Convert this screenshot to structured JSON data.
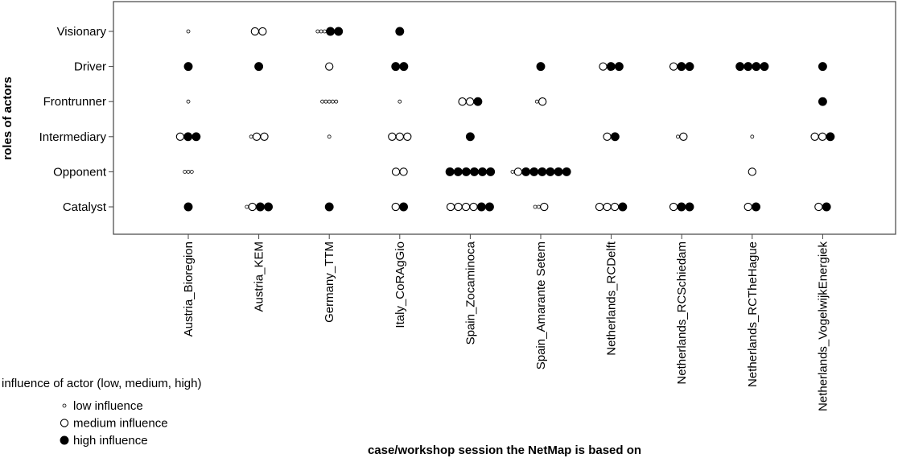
{
  "chart_data": {
    "type": "scatter",
    "xlabel": "case/workshop session the NetMap is based on",
    "ylabel": "roles of actors",
    "categories": [
      "Austria_Bioregion",
      "Austria_KEM",
      "Germany_TTM",
      "Italy_CoRAgGio",
      "Spain_Zocaminoca",
      "Spain_Amarante Setem",
      "Netherlands_RCDelft",
      "Netherlands_RCSchiedam",
      "Netherlands_RCTheHague",
      "Netherlands_VogelwijkEnergiek"
    ],
    "roles": [
      "Visionary",
      "Driver",
      "Frontrunner",
      "Intermediary",
      "Opponent",
      "Catalyst"
    ],
    "legend": {
      "title": "influence of actor (low, medium, high)",
      "entries": [
        {
          "key": "low",
          "label": "low influence"
        },
        {
          "key": "medium",
          "label": "medium influence"
        },
        {
          "key": "high",
          "label": "high influence"
        }
      ],
      "placement": "bottom-left"
    },
    "grid": false,
    "points": [
      {
        "case": "Austria_Bioregion",
        "role": "Visionary",
        "influence": [
          "low"
        ]
      },
      {
        "case": "Austria_Bioregion",
        "role": "Driver",
        "influence": [
          "high"
        ]
      },
      {
        "case": "Austria_Bioregion",
        "role": "Frontrunner",
        "influence": [
          "low"
        ]
      },
      {
        "case": "Austria_Bioregion",
        "role": "Intermediary",
        "influence": [
          "medium",
          "high",
          "high"
        ]
      },
      {
        "case": "Austria_Bioregion",
        "role": "Opponent",
        "influence": [
          "low",
          "low",
          "low"
        ]
      },
      {
        "case": "Austria_Bioregion",
        "role": "Catalyst",
        "influence": [
          "high"
        ]
      },
      {
        "case": "Austria_KEM",
        "role": "Visionary",
        "influence": [
          "medium",
          "medium"
        ]
      },
      {
        "case": "Austria_KEM",
        "role": "Driver",
        "influence": [
          "high"
        ]
      },
      {
        "case": "Austria_KEM",
        "role": "Intermediary",
        "influence": [
          "low",
          "medium",
          "medium"
        ]
      },
      {
        "case": "Austria_KEM",
        "role": "Catalyst",
        "influence": [
          "low",
          "medium",
          "high",
          "high"
        ]
      },
      {
        "case": "Germany_TTM",
        "role": "Visionary",
        "influence": [
          "low",
          "low",
          "low",
          "high",
          "high"
        ]
      },
      {
        "case": "Germany_TTM",
        "role": "Driver",
        "influence": [
          "medium"
        ]
      },
      {
        "case": "Germany_TTM",
        "role": "Frontrunner",
        "influence": [
          "low",
          "low",
          "low",
          "low",
          "low"
        ]
      },
      {
        "case": "Germany_TTM",
        "role": "Intermediary",
        "influence": [
          "low"
        ]
      },
      {
        "case": "Germany_TTM",
        "role": "Catalyst",
        "influence": [
          "high"
        ]
      },
      {
        "case": "Italy_CoRAgGio",
        "role": "Visionary",
        "influence": [
          "high"
        ]
      },
      {
        "case": "Italy_CoRAgGio",
        "role": "Driver",
        "influence": [
          "high",
          "high"
        ]
      },
      {
        "case": "Italy_CoRAgGio",
        "role": "Frontrunner",
        "influence": [
          "low"
        ]
      },
      {
        "case": "Italy_CoRAgGio",
        "role": "Intermediary",
        "influence": [
          "medium",
          "medium",
          "medium"
        ]
      },
      {
        "case": "Italy_CoRAgGio",
        "role": "Opponent",
        "influence": [
          "medium",
          "medium"
        ]
      },
      {
        "case": "Italy_CoRAgGio",
        "role": "Catalyst",
        "influence": [
          "medium",
          "high"
        ]
      },
      {
        "case": "Spain_Zocaminoca",
        "role": "Frontrunner",
        "influence": [
          "medium",
          "medium",
          "high"
        ]
      },
      {
        "case": "Spain_Zocaminoca",
        "role": "Intermediary",
        "influence": [
          "high"
        ]
      },
      {
        "case": "Spain_Zocaminoca",
        "role": "Opponent",
        "influence": [
          "high",
          "high",
          "high",
          "high",
          "high",
          "high"
        ]
      },
      {
        "case": "Spain_Zocaminoca",
        "role": "Catalyst",
        "influence": [
          "medium",
          "medium",
          "medium",
          "medium",
          "high",
          "high"
        ]
      },
      {
        "case": "Spain_Amarante Setem",
        "role": "Driver",
        "influence": [
          "high"
        ]
      },
      {
        "case": "Spain_Amarante Setem",
        "role": "Frontrunner",
        "influence": [
          "low",
          "medium"
        ]
      },
      {
        "case": "Spain_Amarante Setem",
        "role": "Opponent",
        "influence": [
          "low",
          "medium",
          "high",
          "high",
          "high",
          "high",
          "high",
          "high"
        ]
      },
      {
        "case": "Spain_Amarante Setem",
        "role": "Catalyst",
        "influence": [
          "low",
          "low",
          "medium"
        ]
      },
      {
        "case": "Netherlands_RCDelft",
        "role": "Driver",
        "influence": [
          "medium",
          "high",
          "high"
        ]
      },
      {
        "case": "Netherlands_RCDelft",
        "role": "Intermediary",
        "influence": [
          "medium",
          "high"
        ]
      },
      {
        "case": "Netherlands_RCDelft",
        "role": "Catalyst",
        "influence": [
          "medium",
          "medium",
          "medium",
          "high"
        ]
      },
      {
        "case": "Netherlands_RCSchiedam",
        "role": "Driver",
        "influence": [
          "medium",
          "high",
          "high"
        ]
      },
      {
        "case": "Netherlands_RCSchiedam",
        "role": "Intermediary",
        "influence": [
          "low",
          "medium"
        ]
      },
      {
        "case": "Netherlands_RCSchiedam",
        "role": "Catalyst",
        "influence": [
          "medium",
          "high",
          "high"
        ]
      },
      {
        "case": "Netherlands_RCTheHague",
        "role": "Driver",
        "influence": [
          "high",
          "high",
          "high",
          "high"
        ]
      },
      {
        "case": "Netherlands_RCTheHague",
        "role": "Intermediary",
        "influence": [
          "low"
        ]
      },
      {
        "case": "Netherlands_RCTheHague",
        "role": "Opponent",
        "influence": [
          "medium"
        ]
      },
      {
        "case": "Netherlands_RCTheHague",
        "role": "Catalyst",
        "influence": [
          "medium",
          "high"
        ]
      },
      {
        "case": "Netherlands_VogelwijkEnergiek",
        "role": "Driver",
        "influence": [
          "high"
        ]
      },
      {
        "case": "Netherlands_VogelwijkEnergiek",
        "role": "Frontrunner",
        "influence": [
          "high"
        ]
      },
      {
        "case": "Netherlands_VogelwijkEnergiek",
        "role": "Intermediary",
        "influence": [
          "medium",
          "medium",
          "high"
        ]
      },
      {
        "case": "Netherlands_VogelwijkEnergiek",
        "role": "Catalyst",
        "influence": [
          "medium",
          "high"
        ]
      }
    ]
  }
}
